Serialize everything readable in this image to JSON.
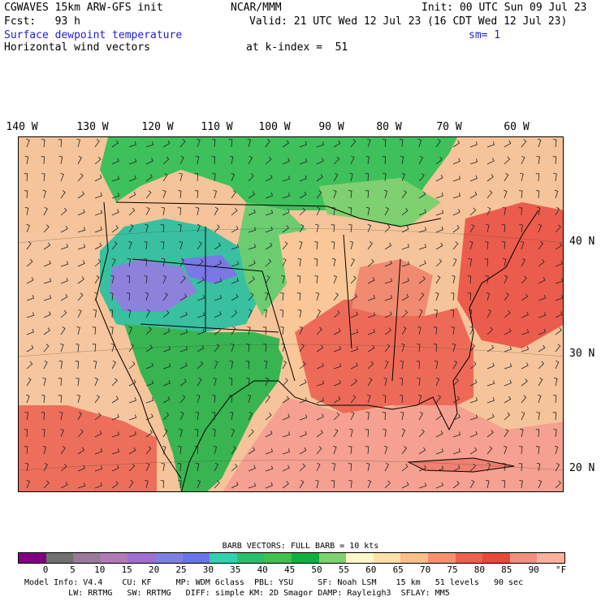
{
  "header": {
    "model": "CGWAVES 15km ARW-GFS init",
    "org": "NCAR/MMM",
    "init": "Init: 00 UTC Sun 09 Jul 23",
    "fcst": "Fcst:   93 h",
    "valid": "Valid: 21 UTC Wed 12 Jul 23 (16 CDT Wed 12 Jul 23)",
    "field1": "Surface dewpoint temperature",
    "sm": "sm= 1",
    "field2": "Horizontal wind vectors",
    "kindex": "at k-index =  51"
  },
  "map": {
    "lon_labels": [
      "140 W",
      "130 W",
      "120 W",
      "110 W",
      "100 W",
      "90 W",
      "80 W",
      "70 W",
      "60 W"
    ],
    "lat_labels": [
      "40 N",
      "30 N",
      "20 N"
    ]
  },
  "legend": {
    "barb_title": "BARB VECTORS:  FULL BARB = 10 kts",
    "ticks": [
      "0",
      "5",
      "10",
      "15",
      "20",
      "25",
      "30",
      "35",
      "40",
      "45",
      "50",
      "55",
      "60",
      "65",
      "70",
      "75",
      "80",
      "85",
      "90",
      "°F"
    ],
    "colors": [
      "#800080",
      "#707070",
      "#9a7a9a",
      "#b27ab6",
      "#a070d0",
      "#8080e0",
      "#6a74ea",
      "#30d0b0",
      "#28c06a",
      "#40c050",
      "#10b040",
      "#7fd070",
      "#fff8c8",
      "#fde0a8",
      "#f8c088",
      "#f89070",
      "#f06050",
      "#e84a3a",
      "#f09080",
      "#f8b0a0",
      "#f0c0b8",
      "#d0d0d0"
    ]
  },
  "footer": {
    "line1": "Model Info: V4.4    CU: KF     MP: WDM 6class  PBL: YSU     SF: Noah LSM    15 km   51 levels   90 sec",
    "line2": "         LW: RRTMG   SW: RRTMG   DIFF: simple KM: 2D Smagor DAMP: Rayleigh3  SFLAY: MM5"
  }
}
